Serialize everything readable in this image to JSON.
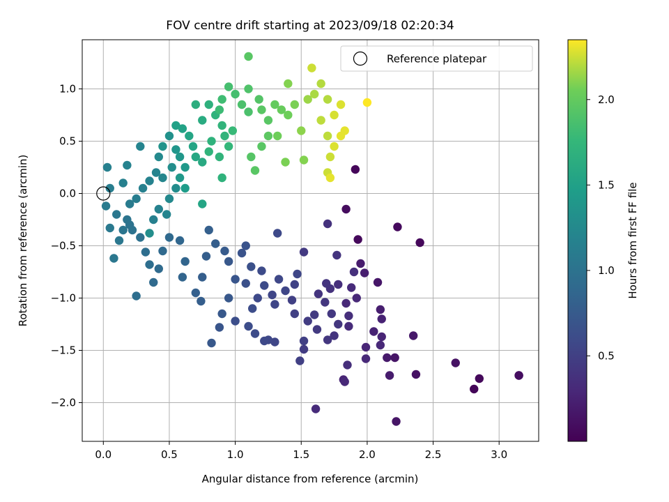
{
  "chart_data": {
    "type": "scatter",
    "title": "FOV centre drift starting at 2023/09/18 02:20:34",
    "xlabel": "Angular distance from reference (arcmin)",
    "ylabel": "Rotation from reference (arcmin)",
    "xlim": [
      -0.16,
      3.3
    ],
    "ylim": [
      -2.37,
      1.47
    ],
    "xticks": [
      0.0,
      0.5,
      1.0,
      1.5,
      2.0,
      2.5,
      3.0
    ],
    "xtick_labels": [
      "0.0",
      "0.5",
      "1.0",
      "1.5",
      "2.0",
      "2.5",
      "3.0"
    ],
    "yticks": [
      1.0,
      0.5,
      0.0,
      -0.5,
      -1.0,
      -1.5,
      -2.0
    ],
    "ytick_labels": [
      "1.0",
      "0.5",
      "0.0",
      "−0.5",
      "−1.0",
      "−1.5",
      "−2.0"
    ],
    "grid": true,
    "legend": {
      "position": "upper-right",
      "entries": [
        "Reference platepar"
      ]
    },
    "reference_point": {
      "x": 0.0,
      "y": 0.0
    },
    "colorbar": {
      "label": "Hours from first FF file",
      "colormap": "viridis",
      "range": [
        0.0,
        2.35
      ],
      "ticks": [
        0.5,
        1.0,
        1.5,
        2.0
      ],
      "tick_labels": [
        "0.5",
        "1.0",
        "1.5",
        "2.0"
      ]
    },
    "points": [
      [
        2.81,
        -1.87,
        0.03
      ],
      [
        2.85,
        -1.77,
        0.06
      ],
      [
        3.15,
        -1.74,
        0.09
      ],
      [
        3.15,
        -1.74,
        0.1
      ],
      [
        2.67,
        -1.62,
        0.13
      ],
      [
        2.4,
        -0.47,
        0.05
      ],
      [
        2.23,
        -0.32,
        0.07
      ],
      [
        2.22,
        -2.18,
        0.15
      ],
      [
        2.21,
        -1.57,
        0.15
      ],
      [
        2.37,
        -1.73,
        0.12
      ],
      [
        2.35,
        -1.36,
        0.17
      ],
      [
        2.15,
        -1.57,
        0.18
      ],
      [
        2.17,
        -1.74,
        0.2
      ],
      [
        1.91,
        0.23,
        0.04
      ],
      [
        1.93,
        -0.44,
        0.06
      ],
      [
        1.84,
        -0.15,
        0.08
      ],
      [
        2.08,
        -0.85,
        0.16
      ],
      [
        1.95,
        -0.67,
        0.2
      ],
      [
        1.98,
        -0.76,
        0.22
      ],
      [
        2.1,
        -1.11,
        0.22
      ],
      [
        2.11,
        -1.2,
        0.25
      ],
      [
        2.05,
        -1.32,
        0.25
      ],
      [
        2.11,
        -1.37,
        0.27
      ],
      [
        2.1,
        -1.45,
        0.3
      ],
      [
        1.99,
        -1.47,
        0.28
      ],
      [
        1.99,
        -1.58,
        0.3
      ],
      [
        1.92,
        -1.0,
        0.3
      ],
      [
        1.88,
        -0.9,
        0.32
      ],
      [
        1.84,
        -1.05,
        0.3
      ],
      [
        1.86,
        -1.17,
        0.35
      ],
      [
        1.86,
        -1.27,
        0.33
      ],
      [
        1.85,
        -1.64,
        0.35
      ],
      [
        1.82,
        -1.78,
        0.27
      ],
      [
        1.83,
        -1.8,
        0.3
      ],
      [
        1.61,
        -2.06,
        0.32
      ],
      [
        1.9,
        -0.75,
        0.36
      ],
      [
        1.78,
        -0.87,
        0.35
      ],
      [
        1.72,
        -0.91,
        0.38
      ],
      [
        1.69,
        -0.86,
        0.4
      ],
      [
        1.7,
        -0.29,
        0.38
      ],
      [
        1.77,
        -0.59,
        0.4
      ],
      [
        1.52,
        -0.56,
        0.45
      ],
      [
        1.63,
        -0.96,
        0.4
      ],
      [
        1.68,
        -1.04,
        0.42
      ],
      [
        1.73,
        -1.15,
        0.43
      ],
      [
        1.78,
        -1.25,
        0.42
      ],
      [
        1.75,
        -1.36,
        0.4
      ],
      [
        1.7,
        -1.4,
        0.42
      ],
      [
        1.62,
        -1.3,
        0.45
      ],
      [
        1.6,
        -1.16,
        0.45
      ],
      [
        1.55,
        -1.22,
        0.47
      ],
      [
        1.52,
        -1.41,
        0.5
      ],
      [
        1.52,
        -1.49,
        0.47
      ],
      [
        1.49,
        -1.6,
        0.5
      ],
      [
        1.45,
        -1.15,
        0.5
      ],
      [
        1.43,
        -1.02,
        0.5
      ],
      [
        1.45,
        -0.87,
        0.52
      ],
      [
        1.47,
        -0.77,
        0.55
      ],
      [
        1.38,
        -0.93,
        0.55
      ],
      [
        1.33,
        -0.82,
        0.57
      ],
      [
        1.28,
        -0.97,
        0.55
      ],
      [
        1.3,
        -1.06,
        0.55
      ],
      [
        1.3,
        -1.42,
        0.55
      ],
      [
        1.25,
        -1.4,
        0.57
      ],
      [
        1.22,
        -1.41,
        0.58
      ],
      [
        1.32,
        -0.38,
        0.58
      ],
      [
        1.2,
        -0.74,
        0.6
      ],
      [
        1.22,
        -0.88,
        0.6
      ],
      [
        1.17,
        -1.0,
        0.58
      ],
      [
        1.13,
        -1.1,
        0.62
      ],
      [
        1.1,
        -1.27,
        0.62
      ],
      [
        1.15,
        -1.34,
        0.6
      ],
      [
        1.0,
        -1.22,
        0.63
      ],
      [
        1.08,
        -0.86,
        0.65
      ],
      [
        1.12,
        -0.7,
        0.65
      ],
      [
        1.08,
        -0.5,
        0.68
      ],
      [
        1.05,
        -0.57,
        0.68
      ],
      [
        1.0,
        -0.82,
        0.7
      ],
      [
        0.95,
        -1.0,
        0.72
      ],
      [
        0.9,
        -1.15,
        0.72
      ],
      [
        0.88,
        -1.28,
        0.7
      ],
      [
        0.82,
        -1.43,
        0.72
      ],
      [
        0.95,
        -0.65,
        0.72
      ],
      [
        0.92,
        -0.55,
        0.75
      ],
      [
        0.85,
        -0.48,
        0.78
      ],
      [
        0.8,
        -0.35,
        0.8
      ],
      [
        0.78,
        -0.6,
        0.78
      ],
      [
        0.75,
        -0.8,
        0.78
      ],
      [
        0.7,
        -0.95,
        0.8
      ],
      [
        0.74,
        -1.03,
        0.78
      ],
      [
        0.6,
        -0.8,
        0.85
      ],
      [
        0.62,
        -0.65,
        0.85
      ],
      [
        0.58,
        -0.45,
        0.87
      ],
      [
        0.5,
        -0.42,
        0.9
      ],
      [
        0.45,
        -0.55,
        0.9
      ],
      [
        0.42,
        -0.72,
        0.92
      ],
      [
        0.38,
        -0.85,
        0.92
      ],
      [
        0.35,
        -0.68,
        0.95
      ],
      [
        0.32,
        -0.56,
        0.95
      ],
      [
        0.28,
        -0.42,
        0.98
      ],
      [
        0.25,
        -0.98,
        0.95
      ],
      [
        0.22,
        -0.35,
        1.0
      ],
      [
        0.2,
        -0.3,
        1.0
      ],
      [
        0.18,
        -0.25,
        1.02
      ],
      [
        0.15,
        -0.35,
        1.03
      ],
      [
        0.1,
        -0.2,
        1.05
      ],
      [
        0.08,
        -0.62,
        1.05
      ],
      [
        0.12,
        -0.45,
        1.05
      ],
      [
        0.05,
        -0.33,
        1.07
      ],
      [
        0.02,
        -0.12,
        1.1
      ],
      [
        0.05,
        0.05,
        1.12
      ],
      [
        0.03,
        0.25,
        1.15
      ],
      [
        0.15,
        0.1,
        1.15
      ],
      [
        0.18,
        0.27,
        1.17
      ],
      [
        0.28,
        0.45,
        1.2
      ],
      [
        0.2,
        -0.1,
        1.1
      ],
      [
        0.25,
        -0.05,
        1.12
      ],
      [
        0.3,
        0.05,
        1.15
      ],
      [
        0.35,
        0.12,
        1.18
      ],
      [
        0.4,
        0.2,
        1.2
      ],
      [
        0.42,
        0.35,
        1.25
      ],
      [
        0.45,
        0.15,
        1.22
      ],
      [
        0.38,
        -0.25,
        1.15
      ],
      [
        0.42,
        -0.15,
        1.18
      ],
      [
        0.48,
        -0.2,
        1.2
      ],
      [
        0.5,
        -0.05,
        1.25
      ],
      [
        0.55,
        0.05,
        1.28
      ],
      [
        0.52,
        0.25,
        1.3
      ],
      [
        0.45,
        0.45,
        1.35
      ],
      [
        0.5,
        0.55,
        1.33
      ],
      [
        0.55,
        0.42,
        1.38
      ],
      [
        0.58,
        0.35,
        1.4
      ],
      [
        0.62,
        0.25,
        1.42
      ],
      [
        0.58,
        0.15,
        1.42
      ],
      [
        0.62,
        0.05,
        1.45
      ],
      [
        0.35,
        -0.38,
        1.3
      ],
      [
        0.55,
        0.65,
        1.5
      ],
      [
        0.6,
        0.62,
        1.52
      ],
      [
        0.65,
        0.55,
        1.55
      ],
      [
        0.68,
        0.45,
        1.55
      ],
      [
        0.7,
        0.35,
        1.58
      ],
      [
        0.75,
        0.3,
        1.6
      ],
      [
        0.75,
        -0.1,
        1.55
      ],
      [
        0.75,
        0.7,
        1.62
      ],
      [
        0.7,
        0.85,
        1.65
      ],
      [
        0.8,
        0.85,
        1.68
      ],
      [
        0.85,
        0.75,
        1.7
      ],
      [
        0.9,
        0.65,
        1.72
      ],
      [
        0.92,
        0.55,
        1.72
      ],
      [
        0.95,
        0.45,
        1.75
      ],
      [
        0.98,
        0.6,
        1.78
      ],
      [
        0.9,
        0.15,
        1.7
      ],
      [
        0.88,
        0.35,
        1.72
      ],
      [
        0.82,
        0.5,
        1.7
      ],
      [
        0.8,
        0.4,
        1.72
      ],
      [
        0.95,
        1.02,
        1.85
      ],
      [
        1.0,
        0.95,
        1.85
      ],
      [
        1.05,
        0.85,
        1.88
      ],
      [
        1.1,
        0.78,
        1.88
      ],
      [
        1.1,
        1.0,
        1.9
      ],
      [
        1.18,
        0.9,
        1.92
      ],
      [
        1.2,
        0.8,
        1.95
      ],
      [
        1.25,
        0.7,
        1.95
      ],
      [
        1.25,
        0.55,
        1.97
      ],
      [
        1.2,
        0.45,
        1.95
      ],
      [
        1.12,
        0.35,
        1.93
      ],
      [
        1.15,
        0.22,
        1.95
      ],
      [
        1.1,
        1.31,
        1.95
      ],
      [
        0.9,
        0.9,
        1.82
      ],
      [
        0.88,
        0.8,
        1.8
      ],
      [
        1.3,
        0.85,
        2.0
      ],
      [
        1.35,
        0.8,
        2.02
      ],
      [
        1.4,
        0.75,
        2.05
      ],
      [
        1.45,
        0.85,
        2.08
      ],
      [
        1.4,
        1.05,
        2.1
      ],
      [
        1.32,
        0.55,
        2.05
      ],
      [
        1.38,
        0.3,
        2.08
      ],
      [
        1.52,
        0.32,
        2.1
      ],
      [
        1.5,
        0.6,
        2.12
      ],
      [
        1.55,
        0.9,
        2.15
      ],
      [
        1.6,
        0.95,
        2.18
      ],
      [
        1.65,
        1.05,
        2.2
      ],
      [
        1.7,
        0.9,
        2.2
      ],
      [
        1.65,
        0.7,
        2.22
      ],
      [
        1.7,
        0.55,
        2.22
      ],
      [
        1.72,
        0.35,
        2.25
      ],
      [
        1.7,
        0.2,
        2.25
      ],
      [
        1.75,
        0.75,
        2.27
      ],
      [
        1.8,
        0.85,
        2.28
      ],
      [
        1.83,
        0.6,
        2.3
      ],
      [
        1.8,
        0.55,
        2.3
      ],
      [
        1.75,
        0.45,
        2.28
      ],
      [
        1.72,
        0.15,
        2.3
      ],
      [
        1.58,
        1.2,
        2.25
      ],
      [
        2.0,
        0.87,
        2.35
      ]
    ]
  }
}
